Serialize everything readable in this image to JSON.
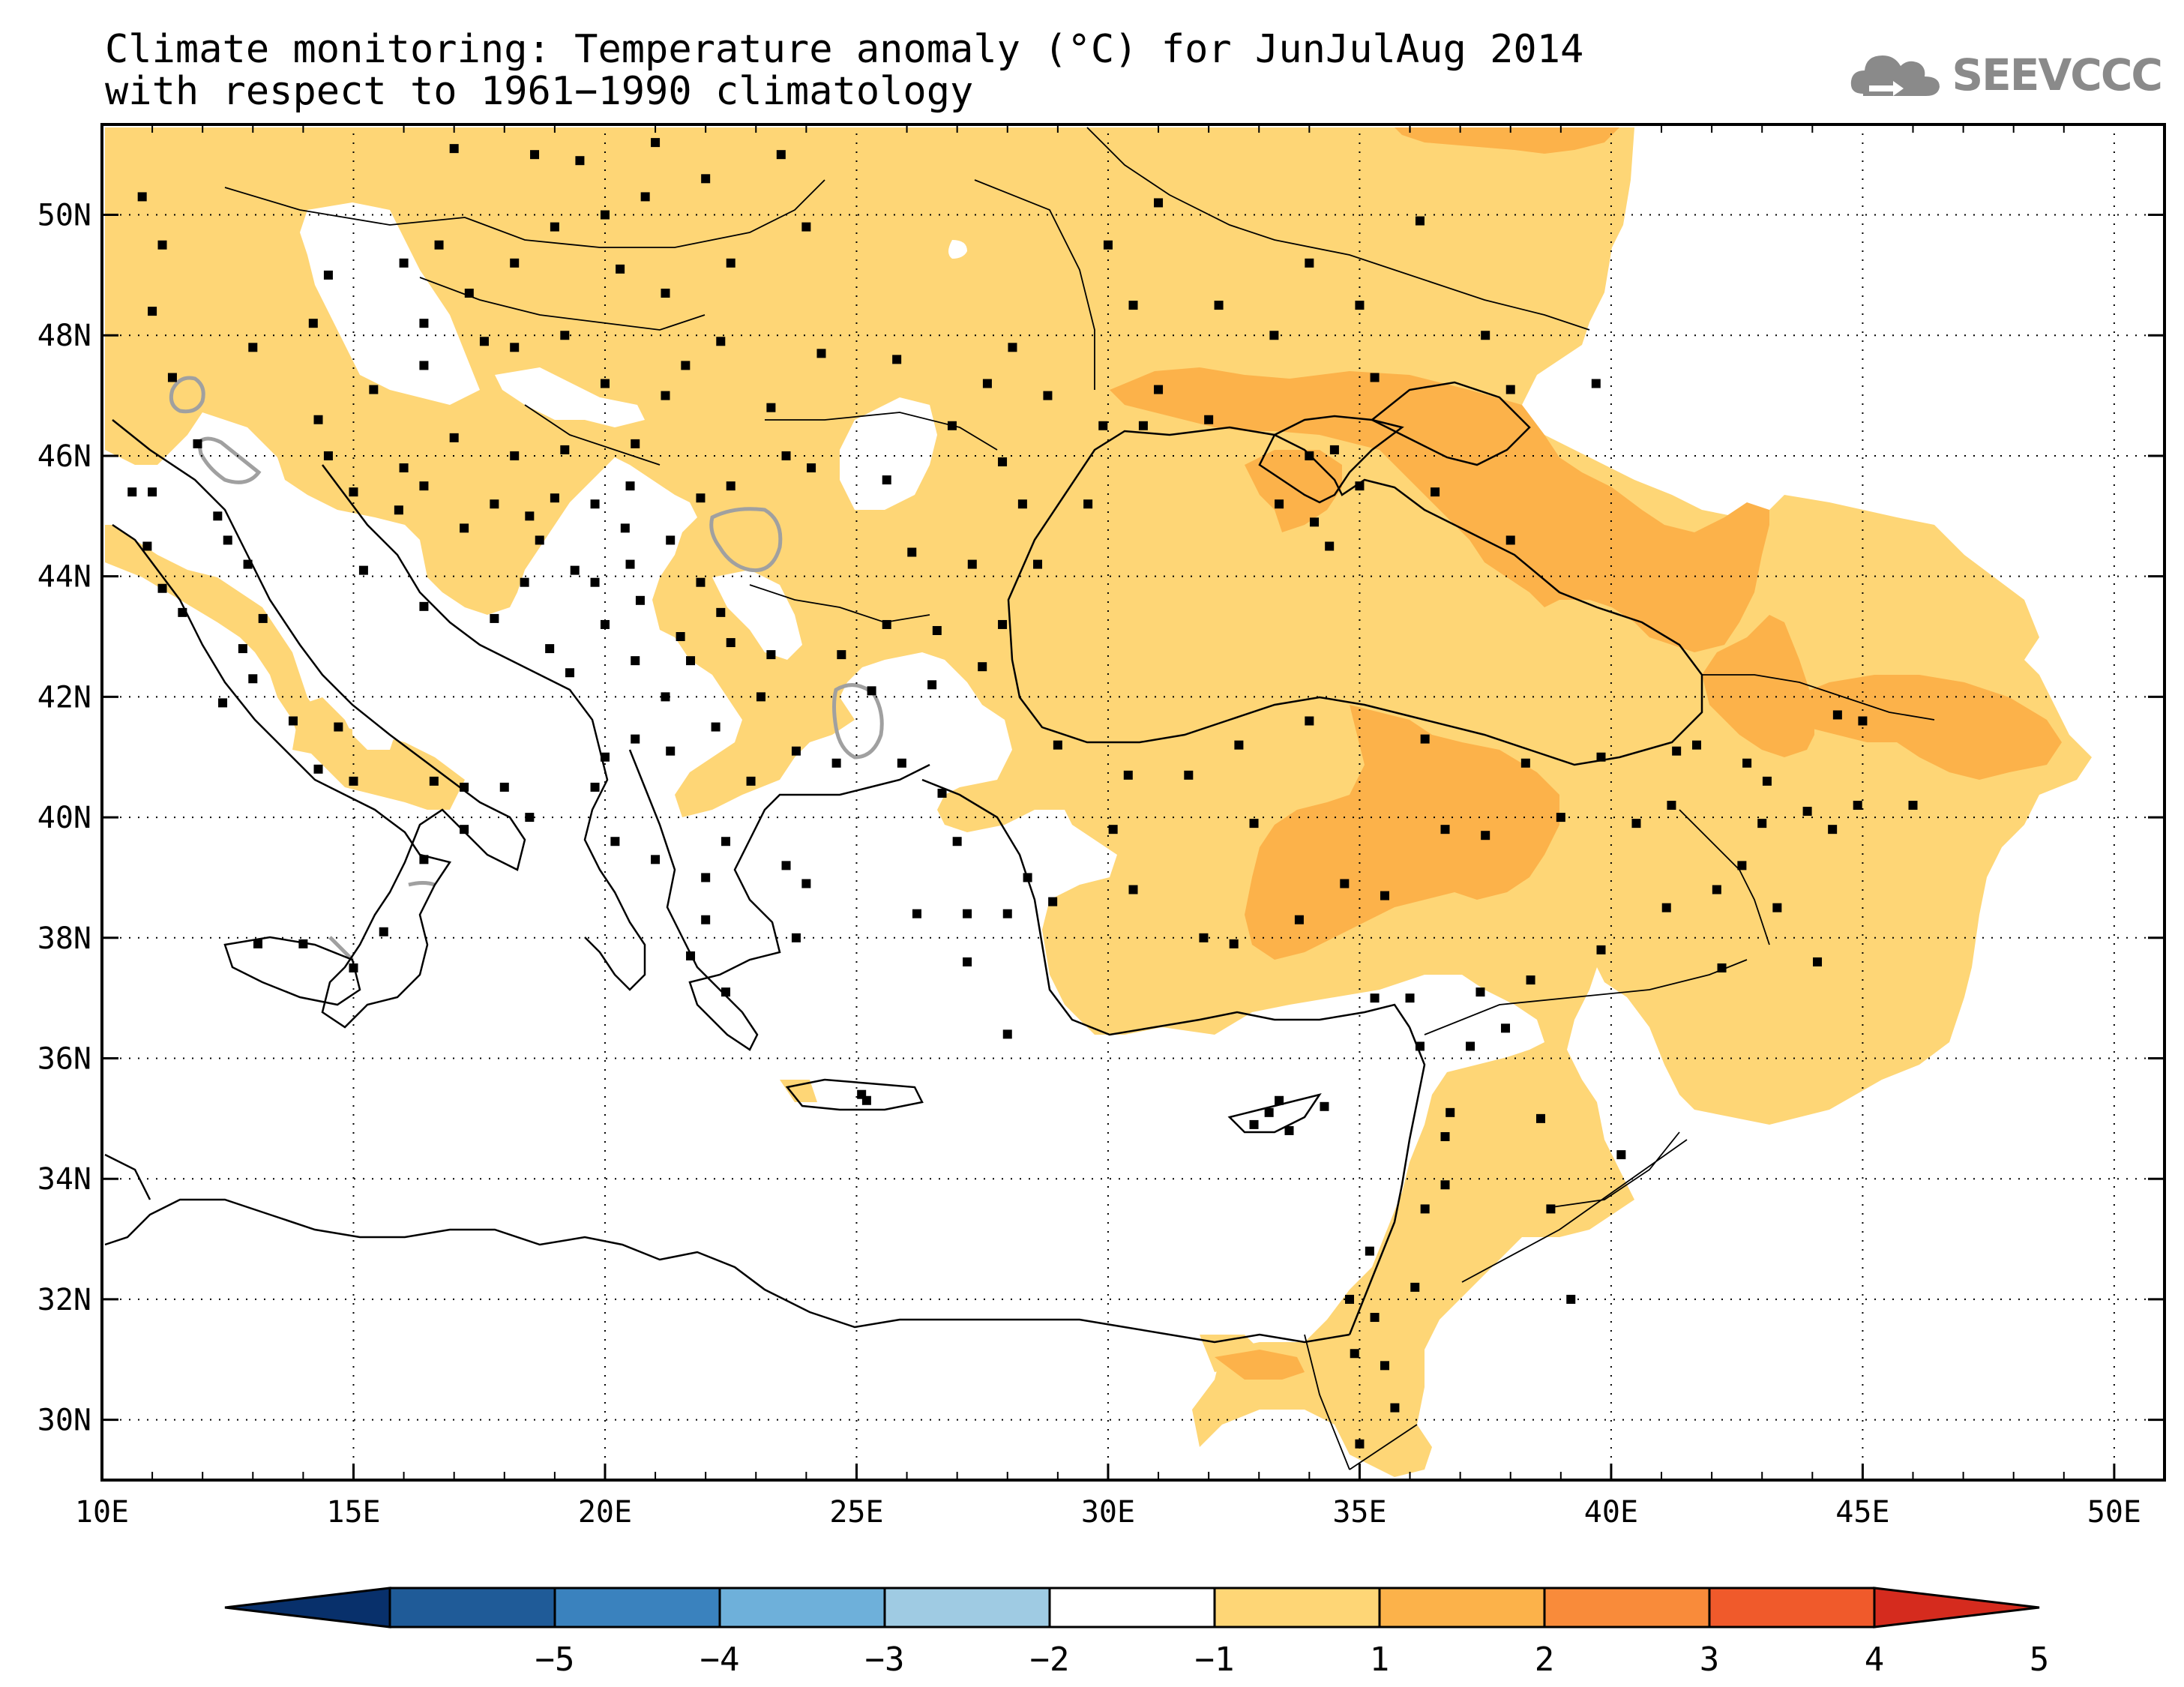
{
  "title": {
    "line1": "Climate monitoring: Temperature anomaly (°C) for JunJulAug 2014",
    "line2": "with respect to 1961−1990 climatology"
  },
  "logo": {
    "text": "SEEVCCC",
    "icon": "cloud-icon"
  },
  "map": {
    "lon_range": [
      10,
      51
    ],
    "lat_range": [
      29,
      51.5
    ],
    "lon_ticks": [
      "10E",
      "15E",
      "20E",
      "25E",
      "30E",
      "35E",
      "40E",
      "45E",
      "50E"
    ],
    "lat_ticks": [
      "30N",
      "32N",
      "34N",
      "36N",
      "38N",
      "40N",
      "42N",
      "44N",
      "46N",
      "48N",
      "50N"
    ],
    "grid": "dotted",
    "stations": [
      [
        10.8,
        50.3
      ],
      [
        11.2,
        49.5
      ],
      [
        11.0,
        48.4
      ],
      [
        11.4,
        47.3
      ],
      [
        10.6,
        45.4
      ],
      [
        11.0,
        45.4
      ],
      [
        10.9,
        44.5
      ],
      [
        11.9,
        46.2
      ],
      [
        12.3,
        45.0
      ],
      [
        12.5,
        44.6
      ],
      [
        12.9,
        44.2
      ],
      [
        13.2,
        43.3
      ],
      [
        12.8,
        42.8
      ],
      [
        12.4,
        41.9
      ],
      [
        13.0,
        42.3
      ],
      [
        11.6,
        43.4
      ],
      [
        11.2,
        43.8
      ],
      [
        14.3,
        40.8
      ],
      [
        15.0,
        40.6
      ],
      [
        16.6,
        40.6
      ],
      [
        17.2,
        40.5
      ],
      [
        18.0,
        40.5
      ],
      [
        16.4,
        39.3
      ],
      [
        15.6,
        38.1
      ],
      [
        15.0,
        37.5
      ],
      [
        14.0,
        37.9
      ],
      [
        13.1,
        37.9
      ],
      [
        17.2,
        39.8
      ],
      [
        18.5,
        40.0
      ],
      [
        14.7,
        41.5
      ],
      [
        13.8,
        41.6
      ],
      [
        13.0,
        47.8
      ],
      [
        14.2,
        48.2
      ],
      [
        14.5,
        49.0
      ],
      [
        16.4,
        48.2
      ],
      [
        15.4,
        47.1
      ],
      [
        14.3,
        46.6
      ],
      [
        16.0,
        49.2
      ],
      [
        16.7,
        49.5
      ],
      [
        17.3,
        48.7
      ],
      [
        18.2,
        49.2
      ],
      [
        19.0,
        49.8
      ],
      [
        20.0,
        50.0
      ],
      [
        21.0,
        51.2
      ],
      [
        17.0,
        51.1
      ],
      [
        18.6,
        51.0
      ],
      [
        19.5,
        50.9
      ],
      [
        20.8,
        50.3
      ],
      [
        22.0,
        50.6
      ],
      [
        23.5,
        51.0
      ],
      [
        24.0,
        49.8
      ],
      [
        22.5,
        49.2
      ],
      [
        21.2,
        48.7
      ],
      [
        20.3,
        49.1
      ],
      [
        19.2,
        48.0
      ],
      [
        18.2,
        47.8
      ],
      [
        17.6,
        47.9
      ],
      [
        16.4,
        47.5
      ],
      [
        20.0,
        47.2
      ],
      [
        21.6,
        47.5
      ],
      [
        22.3,
        47.9
      ],
      [
        21.2,
        47.0
      ],
      [
        20.6,
        46.2
      ],
      [
        19.2,
        46.1
      ],
      [
        18.2,
        46.0
      ],
      [
        17.0,
        46.3
      ],
      [
        14.5,
        46.0
      ],
      [
        15.0,
        45.4
      ],
      [
        16.0,
        45.8
      ],
      [
        16.4,
        45.5
      ],
      [
        17.8,
        45.2
      ],
      [
        18.5,
        45.0
      ],
      [
        19.0,
        45.3
      ],
      [
        19.8,
        45.2
      ],
      [
        20.5,
        45.5
      ],
      [
        20.4,
        44.8
      ],
      [
        21.3,
        44.6
      ],
      [
        21.9,
        43.9
      ],
      [
        22.3,
        43.4
      ],
      [
        20.5,
        44.2
      ],
      [
        19.4,
        44.1
      ],
      [
        18.4,
        43.9
      ],
      [
        17.8,
        43.3
      ],
      [
        16.4,
        43.5
      ],
      [
        15.2,
        44.1
      ],
      [
        15.9,
        45.1
      ],
      [
        17.2,
        44.8
      ],
      [
        18.7,
        44.6
      ],
      [
        19.8,
        43.9
      ],
      [
        20.7,
        43.6
      ],
      [
        21.5,
        43.0
      ],
      [
        20.0,
        43.2
      ],
      [
        19.3,
        42.4
      ],
      [
        18.9,
        42.8
      ],
      [
        20.6,
        42.6
      ],
      [
        21.2,
        42.0
      ],
      [
        21.7,
        42.6
      ],
      [
        22.5,
        42.9
      ],
      [
        23.3,
        42.7
      ],
      [
        24.7,
        42.7
      ],
      [
        25.6,
        43.2
      ],
      [
        26.6,
        43.1
      ],
      [
        27.9,
        43.2
      ],
      [
        27.5,
        42.5
      ],
      [
        26.5,
        42.2
      ],
      [
        25.3,
        42.1
      ],
      [
        23.1,
        42.0
      ],
      [
        22.2,
        41.5
      ],
      [
        21.3,
        41.1
      ],
      [
        20.6,
        41.3
      ],
      [
        20.0,
        41.0
      ],
      [
        19.8,
        40.5
      ],
      [
        20.2,
        39.6
      ],
      [
        21.0,
        39.3
      ],
      [
        22.0,
        39.0
      ],
      [
        22.4,
        39.6
      ],
      [
        22.9,
        40.6
      ],
      [
        23.8,
        41.1
      ],
      [
        24.6,
        40.9
      ],
      [
        25.9,
        40.9
      ],
      [
        26.7,
        40.4
      ],
      [
        23.8,
        38.0
      ],
      [
        22.4,
        37.1
      ],
      [
        21.7,
        37.7
      ],
      [
        22.0,
        38.3
      ],
      [
        23.6,
        39.2
      ],
      [
        25.2,
        35.3
      ],
      [
        25.1,
        35.4
      ],
      [
        24.0,
        38.9
      ],
      [
        26.2,
        38.4
      ],
      [
        27.2,
        37.6
      ],
      [
        28.0,
        36.4
      ],
      [
        23.3,
        46.8
      ],
      [
        24.3,
        47.7
      ],
      [
        25.8,
        47.6
      ],
      [
        27.6,
        47.2
      ],
      [
        26.9,
        46.5
      ],
      [
        25.6,
        45.6
      ],
      [
        24.1,
        45.8
      ],
      [
        23.6,
        46.0
      ],
      [
        22.5,
        45.5
      ],
      [
        21.9,
        45.3
      ],
      [
        26.1,
        44.4
      ],
      [
        27.3,
        44.2
      ],
      [
        28.6,
        44.2
      ],
      [
        28.3,
        45.2
      ],
      [
        29.6,
        45.2
      ],
      [
        27.9,
        45.9
      ],
      [
        28.8,
        47.0
      ],
      [
        28.1,
        47.8
      ],
      [
        29.9,
        46.5
      ],
      [
        30.7,
        46.5
      ],
      [
        31.0,
        47.1
      ],
      [
        32.0,
        46.6
      ],
      [
        30.5,
        48.5
      ],
      [
        30.0,
        49.5
      ],
      [
        31.0,
        50.2
      ],
      [
        32.2,
        48.5
      ],
      [
        33.3,
        48.0
      ],
      [
        34.0,
        49.2
      ],
      [
        35.0,
        48.5
      ],
      [
        36.2,
        49.9
      ],
      [
        37.5,
        48.0
      ],
      [
        38.0,
        47.1
      ],
      [
        35.3,
        47.3
      ],
      [
        34.5,
        46.1
      ],
      [
        34.1,
        44.9
      ],
      [
        33.4,
        45.2
      ],
      [
        34.4,
        44.5
      ],
      [
        35.0,
        45.5
      ],
      [
        36.5,
        45.4
      ],
      [
        38.0,
        44.6
      ],
      [
        39.7,
        47.2
      ],
      [
        34.0,
        46.0
      ],
      [
        29.0,
        41.2
      ],
      [
        30.4,
        40.7
      ],
      [
        32.9,
        39.9
      ],
      [
        35.5,
        38.7
      ],
      [
        36.7,
        39.8
      ],
      [
        37.5,
        39.7
      ],
      [
        39.0,
        40.0
      ],
      [
        40.5,
        39.9
      ],
      [
        41.3,
        41.1
      ],
      [
        39.8,
        41.0
      ],
      [
        38.3,
        40.9
      ],
      [
        36.3,
        41.3
      ],
      [
        34.0,
        41.6
      ],
      [
        32.6,
        41.2
      ],
      [
        31.6,
        40.7
      ],
      [
        30.1,
        39.8
      ],
      [
        28.9,
        38.6
      ],
      [
        28.0,
        38.4
      ],
      [
        27.2,
        38.4
      ],
      [
        27.0,
        39.6
      ],
      [
        28.4,
        39.0
      ],
      [
        30.5,
        38.8
      ],
      [
        31.9,
        38.0
      ],
      [
        32.5,
        37.9
      ],
      [
        33.8,
        38.3
      ],
      [
        34.7,
        38.9
      ],
      [
        35.3,
        37.0
      ],
      [
        36.2,
        36.2
      ],
      [
        37.4,
        37.1
      ],
      [
        38.4,
        37.3
      ],
      [
        39.8,
        37.8
      ],
      [
        41.1,
        38.5
      ],
      [
        42.1,
        38.8
      ],
      [
        43.3,
        38.5
      ],
      [
        42.2,
        37.5
      ],
      [
        44.1,
        37.6
      ],
      [
        41.7,
        41.2
      ],
      [
        41.2,
        40.2
      ],
      [
        42.7,
        40.9
      ],
      [
        43.1,
        40.6
      ],
      [
        43.9,
        40.1
      ],
      [
        44.5,
        41.7
      ],
      [
        45.0,
        41.6
      ],
      [
        44.9,
        40.2
      ],
      [
        46.0,
        40.2
      ],
      [
        44.4,
        39.8
      ],
      [
        43.0,
        39.9
      ],
      [
        42.6,
        39.2
      ],
      [
        34.3,
        35.2
      ],
      [
        33.4,
        35.3
      ],
      [
        32.9,
        34.9
      ],
      [
        33.6,
        34.8
      ],
      [
        33.2,
        35.1
      ],
      [
        36.7,
        34.7
      ],
      [
        36.3,
        33.5
      ],
      [
        36.8,
        35.1
      ],
      [
        37.2,
        36.2
      ],
      [
        38.6,
        35.0
      ],
      [
        40.2,
        34.4
      ],
      [
        39.2,
        32.0
      ],
      [
        38.8,
        33.5
      ],
      [
        36.1,
        32.2
      ],
      [
        35.3,
        31.7
      ],
      [
        35.5,
        30.9
      ],
      [
        35.7,
        30.2
      ],
      [
        34.9,
        31.1
      ],
      [
        35.2,
        32.8
      ],
      [
        34.8,
        32.0
      ],
      [
        36.7,
        33.9
      ],
      [
        35.0,
        29.6
      ],
      [
        36.0,
        37.0
      ],
      [
        37.9,
        36.5
      ]
    ]
  },
  "colorbar": {
    "labels": [
      "−5",
      "−4",
      "−3",
      "−2",
      "−1",
      "1",
      "2",
      "3",
      "4",
      "5"
    ],
    "colors": [
      "#08306b",
      "#1f5b98",
      "#3a82be",
      "#6eb0da",
      "#9fcbe3",
      "#ffffff",
      "#fed676",
      "#fcb24a",
      "#f98b3a",
      "#f05a2b",
      "#d52b1e"
    ]
  },
  "colors": {
    "anomaly_1_2": "#fed676",
    "anomaly_2_3": "#fcb24a",
    "contour_negative": "#a0a0a0"
  }
}
